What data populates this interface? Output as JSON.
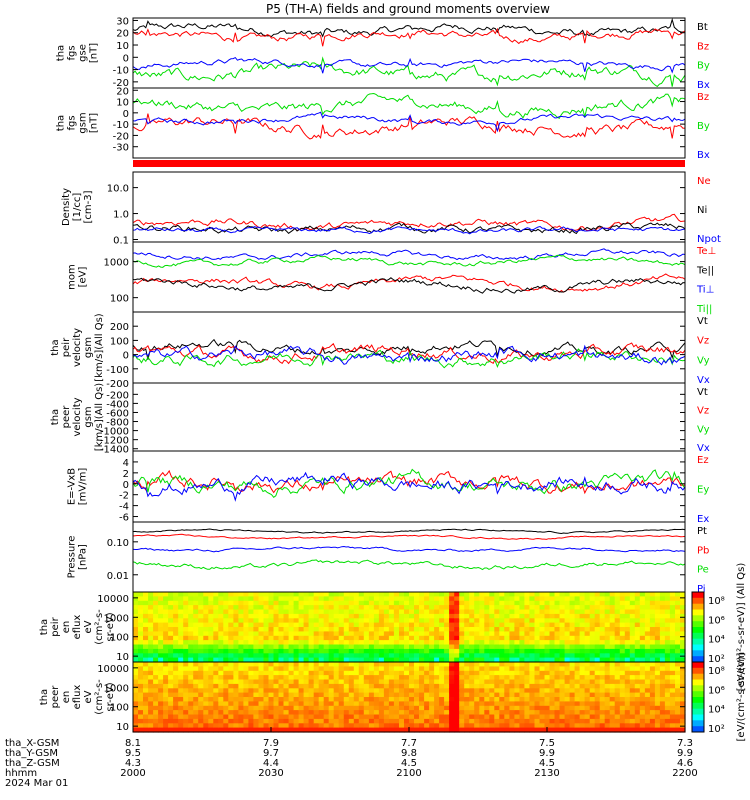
{
  "title": "P5 (TH-A) fields and ground moments overview",
  "colors": {
    "black": "#000000",
    "red": "#ff0000",
    "green": "#00dd00",
    "blue": "#0000ff"
  },
  "chart_data": [
    {
      "type": "line",
      "id": "fgs",
      "ylabel": [
        "tha",
        "fgs",
        "gse",
        "[nT]"
      ],
      "ylim": [
        -25,
        32
      ],
      "yticks": [
        30,
        20,
        10,
        0,
        -10,
        -20
      ],
      "series": [
        {
          "name": "Bt",
          "color": "black",
          "base": 22,
          "amp": 3,
          "noise": 2
        },
        {
          "name": "Bz",
          "color": "red",
          "base": 18,
          "amp": 3,
          "noise": 2
        },
        {
          "name": "By",
          "color": "green",
          "base": -13,
          "amp": 3,
          "noise": 3
        },
        {
          "name": "Bx",
          "color": "blue",
          "base": -5,
          "amp": 2,
          "noise": 1.5
        }
      ]
    },
    {
      "type": "line",
      "id": "fgs_gsm",
      "ylabel": [
        "tha",
        "fgs",
        "gsm",
        "[nT]"
      ],
      "ylim": [
        -40,
        22
      ],
      "yticks": [
        20,
        10,
        0,
        -10,
        -20,
        -30
      ],
      "series": [
        {
          "name": "Bz",
          "color": "red",
          "base": -12,
          "amp": 4,
          "noise": 3
        },
        {
          "name": "By",
          "color": "green",
          "base": 6,
          "amp": 4,
          "noise": 3
        },
        {
          "name": "Bx",
          "color": "blue",
          "base": -6,
          "amp": 2,
          "noise": 1.5
        }
      ]
    },
    {
      "type": "line",
      "id": "density",
      "log": true,
      "ylabel": [
        "Density",
        "[1/cc]",
        "[cm-3]"
      ],
      "ylim": [
        0.08,
        40
      ],
      "yticks": [
        10.0,
        1.0,
        0.1
      ],
      "ytick_labels": [
        "10.0",
        "1.0",
        "0.1"
      ],
      "series": [
        {
          "name": "Ne",
          "color": "red",
          "base": 0.4,
          "amp": 0.3,
          "noise": 0.3
        },
        {
          "name": "Ni",
          "color": "black",
          "base": 0.25,
          "amp": 0.2,
          "noise": 0.3
        },
        {
          "name": "Npot",
          "color": "blue",
          "base": 0.22,
          "amp": 0.1,
          "noise": 0.2
        }
      ]
    },
    {
      "type": "line",
      "id": "temp",
      "log": true,
      "ylabel": [
        "mom",
        "[eV]"
      ],
      "ylim": [
        40,
        3500
      ],
      "yticks": [
        1000,
        100
      ],
      "series": [
        {
          "name": "Te⊥",
          "color": "red",
          "base": 250,
          "amp": 0.3,
          "noise": 0.2
        },
        {
          "name": "Te||",
          "color": "black",
          "base": 220,
          "amp": 0.3,
          "noise": 0.2
        },
        {
          "name": "Ti⊥",
          "color": "blue",
          "base": 1500,
          "amp": 0.2,
          "noise": 0.15
        },
        {
          "name": "Ti||",
          "color": "green",
          "base": 1000,
          "amp": 0.2,
          "noise": 0.15
        }
      ]
    },
    {
      "type": "line",
      "id": "velocity",
      "ylabel": [
        "tha",
        "peir",
        "velocity",
        "gsm",
        "[km/s](All Qs)"
      ],
      "ylim": [
        -200,
        300
      ],
      "yticks": [
        200,
        100,
        0,
        -100,
        -200
      ],
      "series": [
        {
          "name": "Vt",
          "color": "black",
          "base": 50,
          "amp": 25,
          "noise": 20
        },
        {
          "name": "Vz",
          "color": "red",
          "base": 10,
          "amp": 20,
          "noise": 25
        },
        {
          "name": "Vy",
          "color": "green",
          "base": -20,
          "amp": 20,
          "noise": 25
        },
        {
          "name": "Vx",
          "color": "blue",
          "base": -10,
          "amp": 20,
          "noise": 25
        }
      ]
    },
    {
      "type": "line",
      "id": "velocity_e",
      "ylabel": [
        "tha",
        "peer",
        "velocity",
        "gsm",
        "[km/s](All Qs)"
      ],
      "ylim": [
        -1450,
        50
      ],
      "yticks": [
        -200,
        -400,
        -600,
        -800,
        -1000,
        -1200,
        -1400
      ],
      "series": [
        {
          "name": "Vt",
          "color": "black",
          "empty": true
        },
        {
          "name": "Vz",
          "color": "red",
          "empty": true
        },
        {
          "name": "Vy",
          "color": "green",
          "empty": true
        },
        {
          "name": "Vx",
          "color": "blue",
          "empty": true
        }
      ]
    },
    {
      "type": "line",
      "id": "efield",
      "ylabel": [
        "E=-VxB",
        "[mV/m]"
      ],
      "ylim": [
        -7,
        6
      ],
      "yticks": [
        4,
        2,
        0,
        -2,
        -4,
        -6
      ],
      "series": [
        {
          "name": "Ez",
          "color": "red",
          "base": 0,
          "amp": 0.5,
          "noise": 0.8
        },
        {
          "name": "Ey",
          "color": "green",
          "base": 0,
          "amp": 0.5,
          "noise": 0.8
        },
        {
          "name": "Ex",
          "color": "blue",
          "base": 0,
          "amp": 0.5,
          "noise": 0.8
        }
      ]
    },
    {
      "type": "line",
      "id": "pressure",
      "log": true,
      "ylabel": [
        "Pressure",
        "[nPa]"
      ],
      "ylim": [
        0.003,
        0.4
      ],
      "yticks": [
        0.1,
        0.01
      ],
      "ytick_labels": [
        "0.10",
        "0.01"
      ],
      "series": [
        {
          "name": "Pt",
          "color": "black",
          "base": 0.21,
          "amp": 0.1,
          "noise": 0.05
        },
        {
          "name": "Pb",
          "color": "red",
          "base": 0.14,
          "amp": 0.1,
          "noise": 0.05
        },
        {
          "name": "Pe",
          "color": "green",
          "base": 0.02,
          "amp": 0.2,
          "noise": 0.15
        },
        {
          "name": "Pi",
          "color": "blue",
          "base": 0.06,
          "amp": 0.1,
          "noise": 0.08
        }
      ]
    },
    {
      "type": "heatmap",
      "id": "peir_en",
      "ylabel": [
        "tha",
        "peir",
        "en",
        "eflux",
        "eV",
        "(cm²-s-",
        "sr-eV)"
      ],
      "yticks": [
        10000,
        1000,
        100,
        10
      ],
      "ylim": [
        5,
        20000
      ],
      "colorbar": {
        "label": "[eV/(cm²-s-sr-eV)] (All Qs)",
        "ticks": [
          "10⁸",
          "10⁶",
          "10⁴",
          "10²"
        ]
      }
    },
    {
      "type": "heatmap",
      "id": "peer_en",
      "ylabel": [
        "tha",
        "peer",
        "en",
        "eflux",
        "eV",
        "(cm²-s-",
        "sr-eV)"
      ],
      "yticks": [
        10000,
        1000,
        100,
        10
      ],
      "ylim": [
        5,
        20000
      ],
      "colorbar": {
        "label": "[eV/(cm²-s-sr-eV)]",
        "ticks": [
          "10⁸",
          "10⁶",
          "10⁴",
          "10²"
        ]
      }
    }
  ],
  "x_axis": {
    "rows": [
      {
        "label": "tha_X-GSM",
        "values": [
          "8.1",
          "7.9",
          "7.7",
          "7.5",
          "7.3"
        ]
      },
      {
        "label": "tha_Y-GSM",
        "values": [
          "9.5",
          "9.7",
          "9.8",
          "9.9",
          "9.9"
        ]
      },
      {
        "label": "tha_Z-GSM",
        "values": [
          "4.3",
          "4.4",
          "4.5",
          "4.5",
          "4.6"
        ]
      },
      {
        "label": "hhmm",
        "values": [
          "2000",
          "2030",
          "2100",
          "2130",
          "2200"
        ]
      }
    ],
    "date": "2024 Mar 01"
  }
}
